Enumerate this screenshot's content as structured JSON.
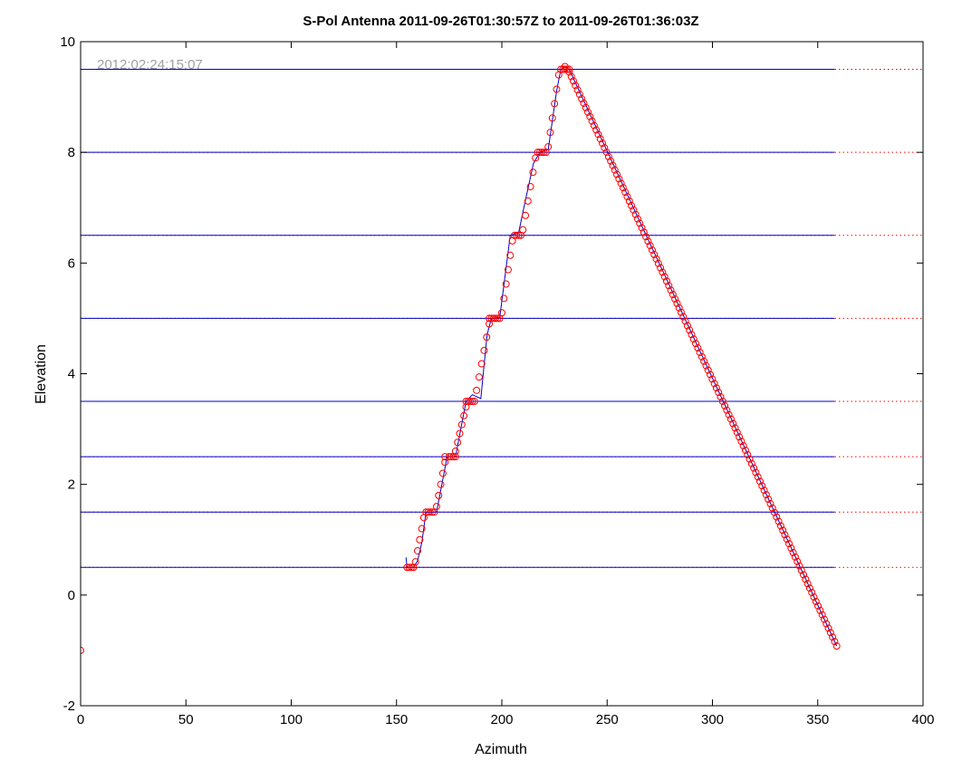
{
  "chart_data": {
    "type": "line",
    "title": "S-Pol Antenna 2011-09-26T01:30:57Z to 2011-09-26T01:36:03Z",
    "xlabel": "Azimuth",
    "ylabel": "Elevation",
    "annotation": "2012:02:24:15:07",
    "xlim": [
      0,
      400
    ],
    "ylim": [
      -2,
      10
    ],
    "xticks": [
      0,
      50,
      100,
      150,
      200,
      250,
      300,
      350,
      400
    ],
    "yticks": [
      -2,
      0,
      2,
      4,
      6,
      8,
      10
    ],
    "grid": false,
    "colors": {
      "sweep_lines": "#0000cc",
      "target_lines": "#ff0000",
      "markers": "#ff0000",
      "trace": "#0000cc"
    },
    "series": [
      {
        "style": "solid-blue-lines",
        "sweeps": [
          {
            "elevation": 0.5,
            "x": [
              0,
              358
            ]
          },
          {
            "elevation": 1.5,
            "x": [
              0,
              358
            ]
          },
          {
            "elevation": 2.5,
            "x": [
              0,
              358
            ]
          },
          {
            "elevation": 3.5,
            "x": [
              0,
              358
            ]
          },
          {
            "elevation": 5.0,
            "x": [
              0,
              358
            ]
          },
          {
            "elevation": 6.5,
            "x": [
              0,
              358
            ]
          },
          {
            "elevation": 8.0,
            "x": [
              0,
              358
            ]
          },
          {
            "elevation": 9.5,
            "x": [
              0,
              358
            ]
          }
        ]
      },
      {
        "style": "dotted-red-lines",
        "elevations": [
          0.5,
          1.5,
          2.5,
          3.5,
          5.0,
          6.5,
          8.0,
          9.5
        ],
        "x": [
          0,
          400
        ]
      },
      {
        "style": "blue-trace-with-red-circles",
        "trace": [
          [
            154.5,
            0.68
          ],
          [
            155,
            0.5
          ],
          [
            158,
            0.5
          ],
          [
            160,
            0.62
          ],
          [
            162,
            0.95
          ],
          [
            164,
            1.5
          ],
          [
            169,
            1.5
          ],
          [
            170,
            1.7
          ],
          [
            174,
            2.5
          ],
          [
            178,
            2.5
          ],
          [
            183,
            3.5
          ],
          [
            186,
            3.62
          ],
          [
            190,
            3.55
          ],
          [
            193,
            4.7
          ],
          [
            195,
            5.0
          ],
          [
            199,
            5.02
          ],
          [
            204,
            6.5
          ],
          [
            208,
            6.55
          ],
          [
            211,
            7.1
          ],
          [
            215,
            7.8
          ],
          [
            218,
            8.0
          ],
          [
            222,
            8.05
          ],
          [
            226,
            9.1
          ],
          [
            228,
            9.5
          ],
          [
            230,
            9.55
          ],
          [
            232,
            9.5
          ],
          [
            359,
            -0.92
          ]
        ],
        "markers": {
          "steps": [
            {
              "x": [
                155,
                156,
                157,
                158
              ],
              "y": 0.5
            },
            {
              "x": [
                164,
                165,
                166,
                167,
                168
              ],
              "y": 1.5
            },
            {
              "x": [
                173,
                175,
                176,
                177,
                178
              ],
              "y": 2.5
            },
            {
              "x": [
                183,
                184,
                185,
                186,
                187
              ],
              "y": 3.5
            },
            {
              "x": [
                194,
                195,
                196,
                197,
                198,
                199
              ],
              "y": 5.0
            },
            {
              "x": [
                206,
                207,
                208,
                209
              ],
              "y": 6.5
            },
            {
              "x": [
                217,
                218,
                219,
                220,
                221
              ],
              "y": 8.0
            },
            {
              "x": [
                228,
                229,
                230,
                231,
                232
              ],
              "y": 9.5
            }
          ],
          "ramps": [
            {
              "x0": 159,
              "y0": 0.6,
              "x1": 163,
              "y1": 1.4,
              "n": 5
            },
            {
              "x0": 169,
              "y0": 1.6,
              "x1": 173,
              "y1": 2.4,
              "n": 5
            },
            {
              "x0": 178,
              "y0": 2.6,
              "x1": 183,
              "y1": 3.4,
              "n": 6
            },
            {
              "x0": 188,
              "y0": 3.7,
              "x1": 194,
              "y1": 4.9,
              "n": 6
            },
            {
              "x0": 200,
              "y0": 5.1,
              "x1": 205,
              "y1": 6.4,
              "n": 6
            },
            {
              "x0": 210,
              "y0": 6.6,
              "x1": 216,
              "y1": 7.9,
              "n": 6
            },
            {
              "x0": 222,
              "y0": 8.1,
              "x1": 227,
              "y1": 9.4,
              "n": 6
            },
            {
              "x0": 232,
              "y0": 9.45,
              "x1": 359,
              "y1": -0.92,
              "n": 130
            }
          ],
          "singles": [
            [
              0,
              -1
            ],
            [
              230,
              9.55
            ]
          ]
        }
      }
    ]
  }
}
